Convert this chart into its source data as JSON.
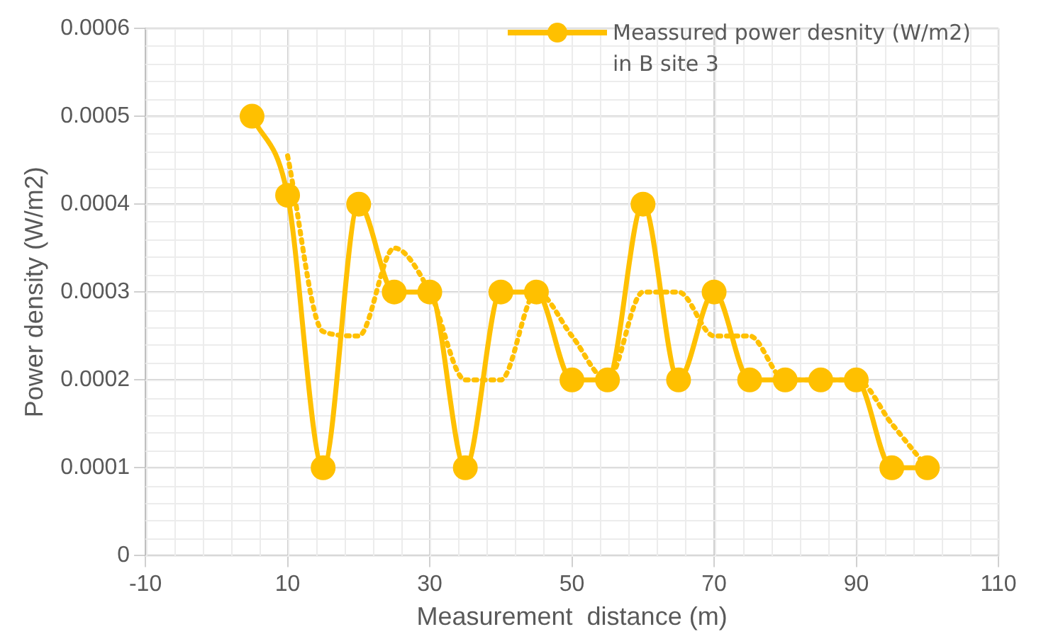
{
  "chart_data": {
    "type": "line",
    "xlabel": "Measurement  distance (m)",
    "ylabel": "Power density (W/m2)",
    "xlim": [
      -10,
      110
    ],
    "xticks": [
      -10,
      10,
      30,
      50,
      70,
      90,
      110
    ],
    "ylim": [
      0,
      0.0006
    ],
    "yticks": [
      0,
      0.0001,
      0.0002,
      0.0003,
      0.0004,
      0.0005,
      0.0006
    ],
    "grid": true,
    "legend": "top right",
    "series": [
      {
        "name": "Meassured power desnity (W/m2) in B site 3",
        "color": "#ffc000",
        "marker": "circle",
        "line_style": "solid",
        "x": [
          5,
          10,
          15,
          20,
          25,
          30,
          35,
          40,
          45,
          50,
          55,
          60,
          65,
          70,
          75,
          80,
          85,
          90,
          95,
          100
        ],
        "values": [
          0.0005,
          0.00041,
          0.0001,
          0.0004,
          0.0003,
          0.0003,
          0.0001,
          0.0003,
          0.0003,
          0.0002,
          0.0002,
          0.0004,
          0.0002,
          0.0003,
          0.0002,
          0.0002,
          0.0002,
          0.0002,
          0.0001,
          0.0001
        ]
      },
      {
        "type": "line",
        "color": "#ffc000",
        "marker": "none",
        "line_style": "dotted",
        "x": [
          10,
          15,
          20,
          25,
          30,
          35,
          40,
          45,
          50,
          55,
          60,
          65,
          70,
          75,
          80,
          85,
          90,
          95,
          100
        ],
        "values": [
          0.000455,
          0.000255,
          0.00025,
          0.00035,
          0.0003,
          0.0002,
          0.0002,
          0.0003,
          0.00025,
          0.0002,
          0.0003,
          0.0003,
          0.00025,
          0.00025,
          0.0002,
          0.0002,
          0.0002,
          0.00015,
          0.0001
        ]
      }
    ]
  }
}
